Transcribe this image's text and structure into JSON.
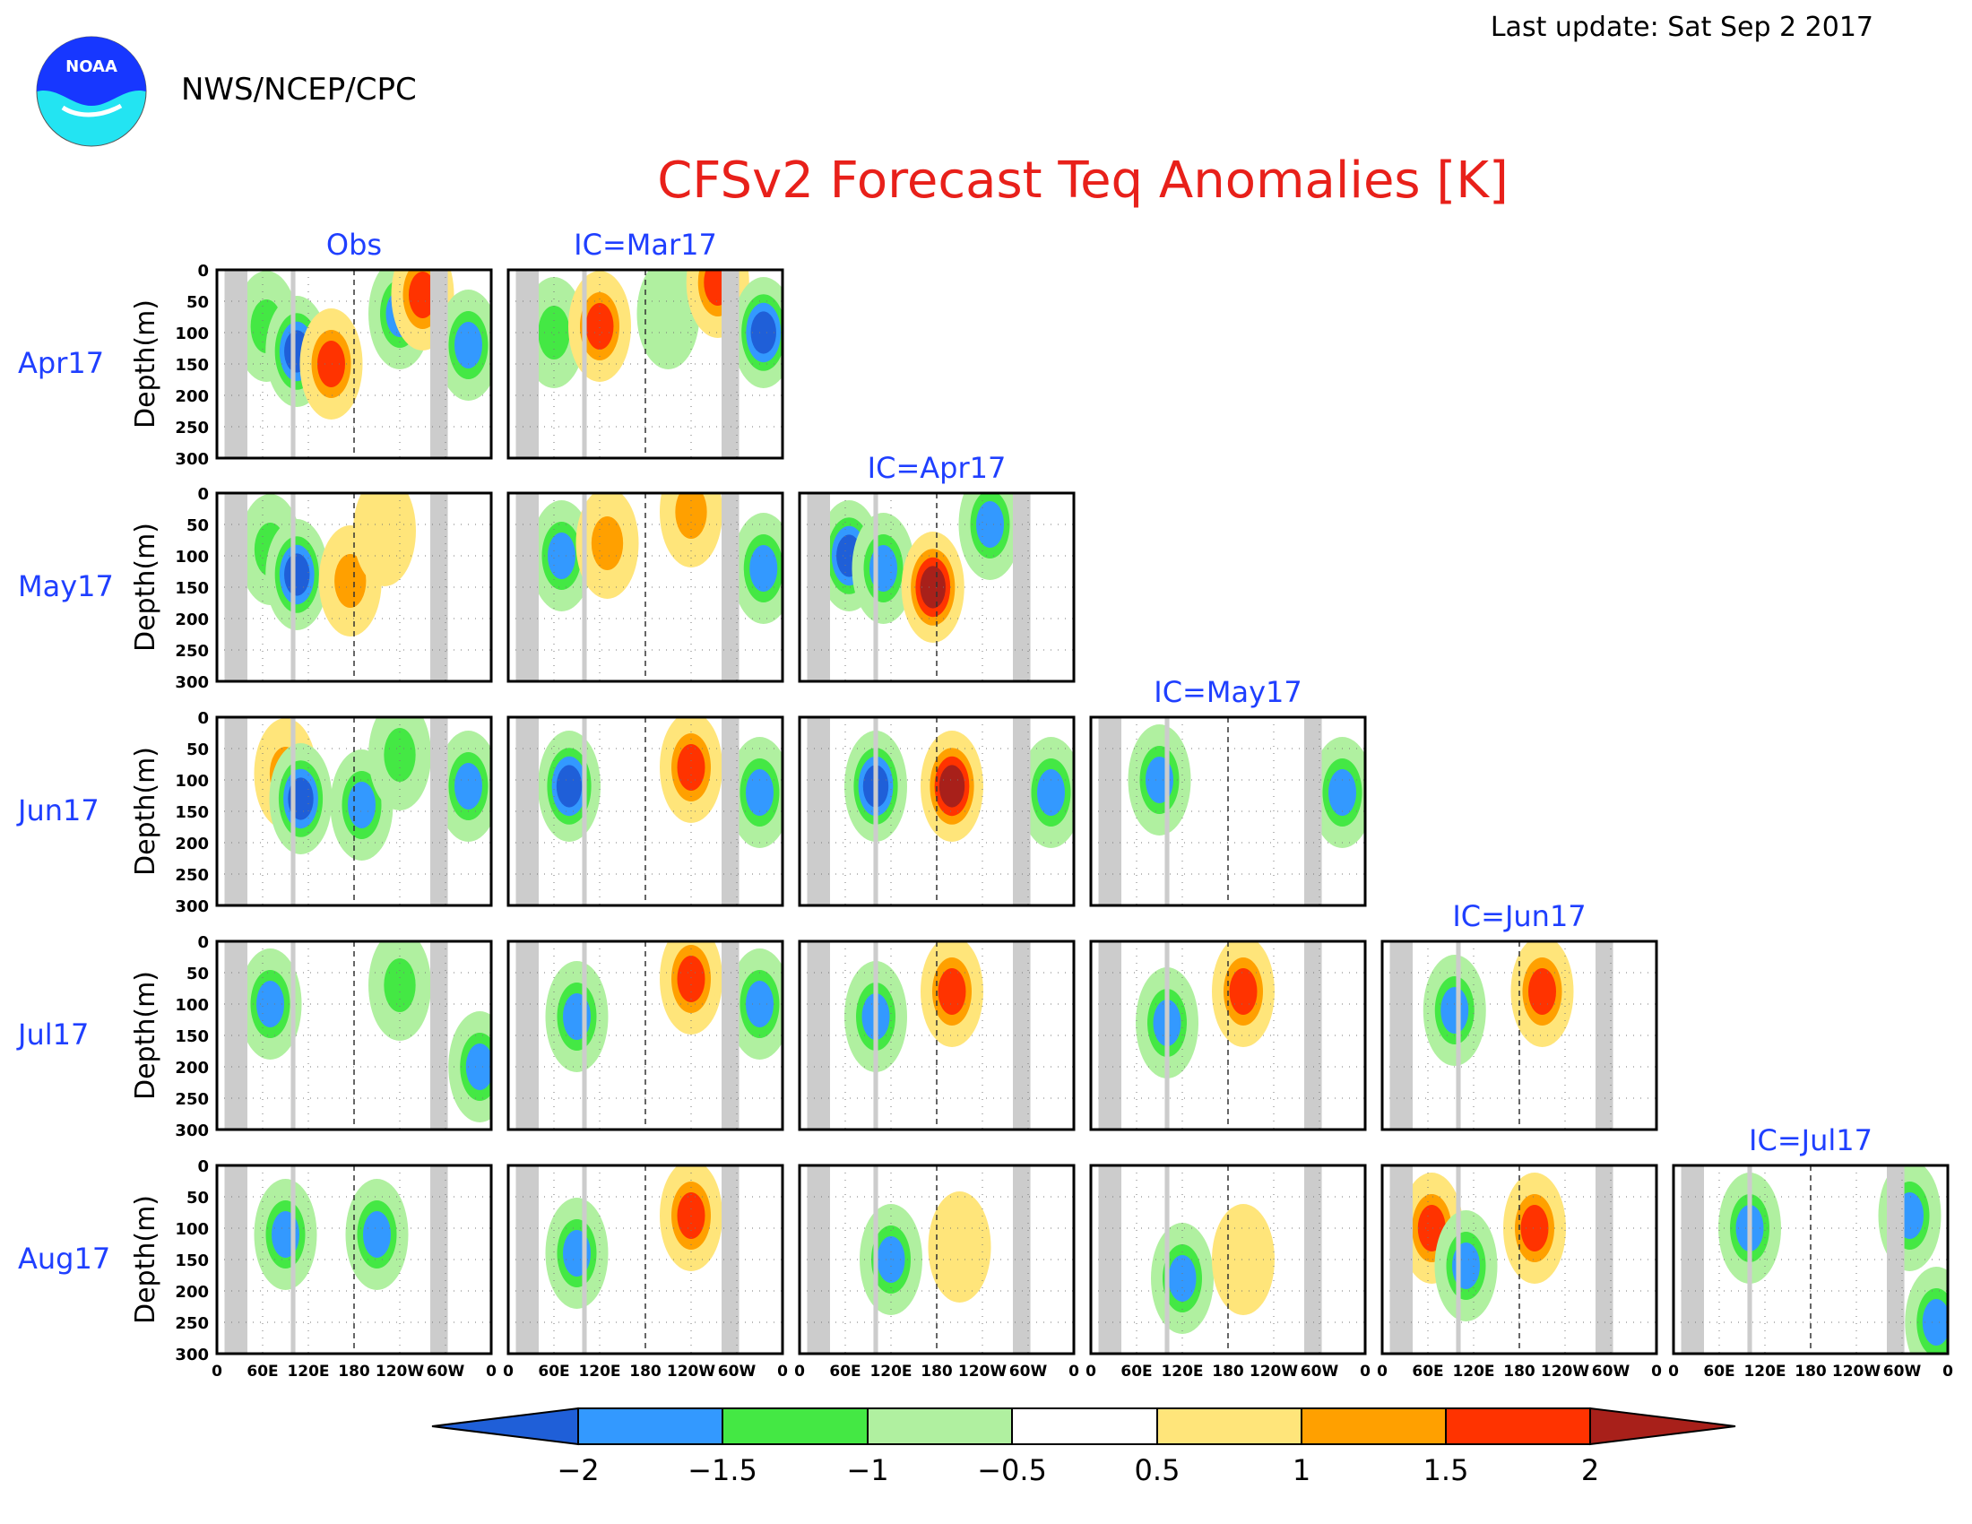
{
  "header": {
    "agency": "NWS/NCEP/CPC",
    "logo_text": "NOAA",
    "last_update": "Last update: Sat Sep 2 2017"
  },
  "colors": {
    "title": "#e8201a",
    "label_blue": "#1f3fff",
    "logo_blue": "#1737ff",
    "logo_cyan": "#23e4f2"
  },
  "chart_data": {
    "type": "heatmap",
    "title": "CFSv2 Forecast Teq Anomalies [K]",
    "units": "K",
    "ylabel": "Depth(m)",
    "y_ticks": [
      0,
      50,
      100,
      150,
      200,
      250,
      300
    ],
    "ylim": [
      300,
      0
    ],
    "x_ticks": [
      "0",
      "60E",
      "120E",
      "180",
      "120W",
      "60W",
      "0"
    ],
    "xlim_deg_east": [
      0,
      360
    ],
    "column_titles": [
      "Obs",
      "IC=Mar17",
      "IC=Apr17",
      "IC=May17",
      "IC=Jun17",
      "IC=Jul17"
    ],
    "row_labels": [
      "Apr17",
      "May17",
      "Jun17",
      "Jul17",
      "Aug17"
    ],
    "panels_per_row": [
      2,
      3,
      4,
      5,
      6
    ],
    "land_mask_bands_deg_east": [
      [
        10,
        40
      ],
      [
        97,
        103
      ],
      [
        280,
        303
      ]
    ],
    "dashed_reference_lon": 180,
    "colorbar": {
      "levels": [
        "-2",
        "-1.5",
        "-1",
        "-0.5",
        "0.5",
        "1",
        "1.5",
        "2"
      ],
      "colors": [
        "#1f5fd8",
        "#3399ff",
        "#44e844",
        "#b0f0a0",
        "#ffffff",
        "#ffe57a",
        "#ffa000",
        "#ff3300",
        "#a8201a"
      ]
    },
    "anomaly_features": [
      {
        "row": 0,
        "col": 0,
        "lon": 65,
        "depth": 90,
        "value": -1.2
      },
      {
        "row": 0,
        "col": 0,
        "lon": 105,
        "depth": 130,
        "value": -2.0
      },
      {
        "row": 0,
        "col": 0,
        "lon": 150,
        "depth": 150,
        "value": 1.5
      },
      {
        "row": 0,
        "col": 0,
        "lon": 240,
        "depth": 70,
        "value": -1.8
      },
      {
        "row": 0,
        "col": 0,
        "lon": 270,
        "depth": 40,
        "value": 1.6
      },
      {
        "row": 0,
        "col": 0,
        "lon": 330,
        "depth": 120,
        "value": -1.7
      },
      {
        "row": 0,
        "col": 1,
        "lon": 60,
        "depth": 100,
        "value": -1.4
      },
      {
        "row": 0,
        "col": 1,
        "lon": 120,
        "depth": 90,
        "value": 1.7
      },
      {
        "row": 0,
        "col": 1,
        "lon": 210,
        "depth": 70,
        "value": -0.8
      },
      {
        "row": 0,
        "col": 1,
        "lon": 275,
        "depth": 20,
        "value": 1.9
      },
      {
        "row": 0,
        "col": 1,
        "lon": 335,
        "depth": 100,
        "value": -2.0
      },
      {
        "row": 1,
        "col": 0,
        "lon": 70,
        "depth": 90,
        "value": -1.2
      },
      {
        "row": 1,
        "col": 0,
        "lon": 105,
        "depth": 130,
        "value": -2.0
      },
      {
        "row": 1,
        "col": 0,
        "lon": 175,
        "depth": 140,
        "value": 1.3
      },
      {
        "row": 1,
        "col": 0,
        "lon": 220,
        "depth": 60,
        "value": 0.7
      },
      {
        "row": 1,
        "col": 1,
        "lon": 70,
        "depth": 100,
        "value": -1.8
      },
      {
        "row": 1,
        "col": 1,
        "lon": 130,
        "depth": 80,
        "value": 1.3
      },
      {
        "row": 1,
        "col": 1,
        "lon": 240,
        "depth": 30,
        "value": 1.3
      },
      {
        "row": 1,
        "col": 1,
        "lon": 335,
        "depth": 120,
        "value": -1.8
      },
      {
        "row": 1,
        "col": 2,
        "lon": 65,
        "depth": 100,
        "value": -2.0
      },
      {
        "row": 1,
        "col": 2,
        "lon": 110,
        "depth": 120,
        "value": -1.8
      },
      {
        "row": 1,
        "col": 2,
        "lon": 175,
        "depth": 150,
        "value": 2.0
      },
      {
        "row": 1,
        "col": 2,
        "lon": 250,
        "depth": 50,
        "value": -1.9
      },
      {
        "row": 2,
        "col": 0,
        "lon": 90,
        "depth": 90,
        "value": 1.3
      },
      {
        "row": 2,
        "col": 0,
        "lon": 110,
        "depth": 130,
        "value": -2.0
      },
      {
        "row": 2,
        "col": 0,
        "lon": 190,
        "depth": 140,
        "value": -1.7
      },
      {
        "row": 2,
        "col": 0,
        "lon": 240,
        "depth": 60,
        "value": -1.0
      },
      {
        "row": 2,
        "col": 0,
        "lon": 330,
        "depth": 110,
        "value": -1.7
      },
      {
        "row": 2,
        "col": 1,
        "lon": 80,
        "depth": 110,
        "value": -2.0
      },
      {
        "row": 2,
        "col": 1,
        "lon": 240,
        "depth": 80,
        "value": 1.8
      },
      {
        "row": 2,
        "col": 1,
        "lon": 330,
        "depth": 120,
        "value": -1.7
      },
      {
        "row": 2,
        "col": 2,
        "lon": 100,
        "depth": 110,
        "value": -2.0
      },
      {
        "row": 2,
        "col": 2,
        "lon": 200,
        "depth": 110,
        "value": 2.1
      },
      {
        "row": 2,
        "col": 2,
        "lon": 330,
        "depth": 120,
        "value": -1.7
      },
      {
        "row": 2,
        "col": 3,
        "lon": 90,
        "depth": 100,
        "value": -1.6
      },
      {
        "row": 2,
        "col": 3,
        "lon": 330,
        "depth": 120,
        "value": -1.8
      },
      {
        "row": 3,
        "col": 0,
        "lon": 70,
        "depth": 100,
        "value": -1.8
      },
      {
        "row": 3,
        "col": 0,
        "lon": 240,
        "depth": 70,
        "value": -1.2
      },
      {
        "row": 3,
        "col": 0,
        "lon": 345,
        "depth": 200,
        "value": -1.8
      },
      {
        "row": 3,
        "col": 1,
        "lon": 240,
        "depth": 60,
        "value": 1.9
      },
      {
        "row": 3,
        "col": 1,
        "lon": 90,
        "depth": 120,
        "value": -1.7
      },
      {
        "row": 3,
        "col": 1,
        "lon": 330,
        "depth": 100,
        "value": -1.8
      },
      {
        "row": 3,
        "col": 2,
        "lon": 100,
        "depth": 120,
        "value": -1.8
      },
      {
        "row": 3,
        "col": 2,
        "lon": 200,
        "depth": 80,
        "value": 1.6
      },
      {
        "row": 3,
        "col": 3,
        "lon": 200,
        "depth": 80,
        "value": 1.6
      },
      {
        "row": 3,
        "col": 3,
        "lon": 100,
        "depth": 130,
        "value": -1.8
      },
      {
        "row": 3,
        "col": 4,
        "lon": 210,
        "depth": 80,
        "value": 1.7
      },
      {
        "row": 3,
        "col": 4,
        "lon": 95,
        "depth": 110,
        "value": -1.8
      },
      {
        "row": 4,
        "col": 0,
        "lon": 210,
        "depth": 110,
        "value": -1.8
      },
      {
        "row": 4,
        "col": 0,
        "lon": 90,
        "depth": 110,
        "value": -1.6
      },
      {
        "row": 4,
        "col": 1,
        "lon": 240,
        "depth": 80,
        "value": 1.7
      },
      {
        "row": 4,
        "col": 1,
        "lon": 90,
        "depth": 140,
        "value": -1.8
      },
      {
        "row": 4,
        "col": 2,
        "lon": 120,
        "depth": 150,
        "value": -1.8
      },
      {
        "row": 4,
        "col": 2,
        "lon": 210,
        "depth": 130,
        "value": 0.9
      },
      {
        "row": 4,
        "col": 3,
        "lon": 120,
        "depth": 180,
        "value": -1.8
      },
      {
        "row": 4,
        "col": 3,
        "lon": 200,
        "depth": 150,
        "value": 0.8
      },
      {
        "row": 4,
        "col": 4,
        "lon": 65,
        "depth": 100,
        "value": 1.8
      },
      {
        "row": 4,
        "col": 4,
        "lon": 200,
        "depth": 100,
        "value": 1.8
      },
      {
        "row": 4,
        "col": 4,
        "lon": 110,
        "depth": 160,
        "value": -1.8
      },
      {
        "row": 4,
        "col": 5,
        "lon": 100,
        "depth": 100,
        "value": -1.6
      },
      {
        "row": 4,
        "col": 5,
        "lon": 310,
        "depth": 80,
        "value": -1.8
      },
      {
        "row": 4,
        "col": 5,
        "lon": 345,
        "depth": 250,
        "value": -1.8
      }
    ]
  }
}
